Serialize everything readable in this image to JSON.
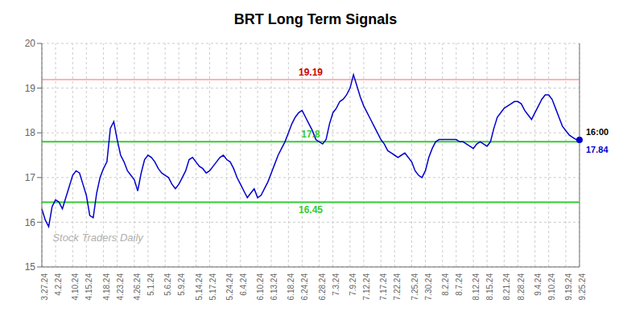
{
  "chart_data": {
    "type": "line",
    "title": "BRT Long Term Signals",
    "categories": [
      "3.27.24",
      null,
      null,
      null,
      "4.2.24",
      null,
      null,
      null,
      null,
      "4.10.24",
      null,
      null,
      null,
      "4.15.24",
      null,
      null,
      null,
      null,
      "4.18.24",
      null,
      null,
      null,
      "4.23.24",
      null,
      null,
      null,
      null,
      "4.26.24",
      null,
      null,
      null,
      "5.1.24",
      null,
      null,
      null,
      null,
      "5.6.24",
      null,
      null,
      null,
      "5.9.24",
      null,
      null,
      null,
      null,
      "5.14.24",
      null,
      null,
      null,
      "5.17.24",
      null,
      null,
      null,
      null,
      "5.24.24",
      null,
      null,
      null,
      "6.4.24",
      null,
      null,
      null,
      null,
      "6.10.24",
      null,
      null,
      null,
      "6.13.24",
      null,
      null,
      null,
      null,
      "6.18.24",
      null,
      null,
      null,
      "6.24.24",
      null,
      null,
      null,
      null,
      "6.28.24",
      null,
      null,
      null,
      "7.3.24",
      null,
      null,
      null,
      null,
      "7.9.24",
      null,
      null,
      null,
      "7.12.24",
      null,
      null,
      null,
      null,
      "7.17.24",
      null,
      null,
      null,
      "7.22.24",
      null,
      null,
      null,
      null,
      "7.25.24",
      null,
      null,
      null,
      "7.30.24",
      null,
      null,
      null,
      null,
      "8.2.24",
      null,
      null,
      null,
      "8.7.24",
      null,
      null,
      null,
      null,
      "8.12.24",
      null,
      null,
      null,
      "8.15.24",
      null,
      null,
      null,
      null,
      "8.21.24",
      null,
      null,
      null,
      "8.28.24",
      null,
      null,
      null,
      null,
      "9.4.24",
      null,
      null,
      null,
      "9.10.24",
      null,
      null,
      null,
      null,
      "9.19.24",
      null,
      null,
      null,
      "9.25.24"
    ],
    "values": [
      16.3,
      16.05,
      15.9,
      16.35,
      16.5,
      16.45,
      16.3,
      16.55,
      16.8,
      17.05,
      17.15,
      17.1,
      16.85,
      16.6,
      16.15,
      16.1,
      16.65,
      17.0,
      17.2,
      17.35,
      18.1,
      18.25,
      17.85,
      17.5,
      17.35,
      17.15,
      17.05,
      16.95,
      16.7,
      17.1,
      17.4,
      17.5,
      17.45,
      17.35,
      17.2,
      17.1,
      17.05,
      17.0,
      16.85,
      16.75,
      16.85,
      17.0,
      17.15,
      17.4,
      17.45,
      17.35,
      17.25,
      17.2,
      17.1,
      17.15,
      17.25,
      17.35,
      17.45,
      17.5,
      17.4,
      17.35,
      17.2,
      17.0,
      16.85,
      16.7,
      16.55,
      16.65,
      16.75,
      16.55,
      16.6,
      16.75,
      16.9,
      17.1,
      17.3,
      17.5,
      17.65,
      17.8,
      18.0,
      18.2,
      18.35,
      18.45,
      18.5,
      18.35,
      18.2,
      18.05,
      17.85,
      17.8,
      17.75,
      17.85,
      18.2,
      18.45,
      18.55,
      18.7,
      18.75,
      18.85,
      19.0,
      19.3,
      19.05,
      18.8,
      18.6,
      18.45,
      18.3,
      18.15,
      18.0,
      17.85,
      17.75,
      17.6,
      17.55,
      17.5,
      17.45,
      17.5,
      17.55,
      17.45,
      17.35,
      17.15,
      17.05,
      17.0,
      17.15,
      17.45,
      17.65,
      17.8,
      17.85,
      17.85,
      17.85,
      17.85,
      17.85,
      17.85,
      17.8,
      17.8,
      17.75,
      17.7,
      17.65,
      17.75,
      17.8,
      17.75,
      17.7,
      17.8,
      18.1,
      18.35,
      18.45,
      18.55,
      18.6,
      18.65,
      18.7,
      18.7,
      18.65,
      18.5,
      18.4,
      18.3,
      18.45,
      18.6,
      18.75,
      18.85,
      18.85,
      18.75,
      18.55,
      18.35,
      18.15,
      18.05,
      17.95,
      17.9,
      17.85,
      17.84
    ],
    "color": "#0000cc",
    "ylim": [
      15,
      20
    ],
    "yticks": [
      15,
      16,
      17,
      18,
      19,
      20
    ],
    "grid": true,
    "reference_lines": [
      {
        "value": 19.19,
        "label": "19.19",
        "color": "#ffb3b3",
        "label_color": "#cc0000"
      },
      {
        "value": 17.8,
        "label": "17.8",
        "color": "#33cc33",
        "label_color": "#33cc33"
      },
      {
        "value": 16.45,
        "label": "16.45",
        "color": "#33cc33",
        "label_color": "#33cc33"
      }
    ],
    "current": {
      "value": 17.84,
      "label": "17.84",
      "time_label": "16:00",
      "line_color": "#888888"
    },
    "watermark": {
      "text": "Stock Traders Daily",
      "color": "#b0b0b0"
    }
  }
}
